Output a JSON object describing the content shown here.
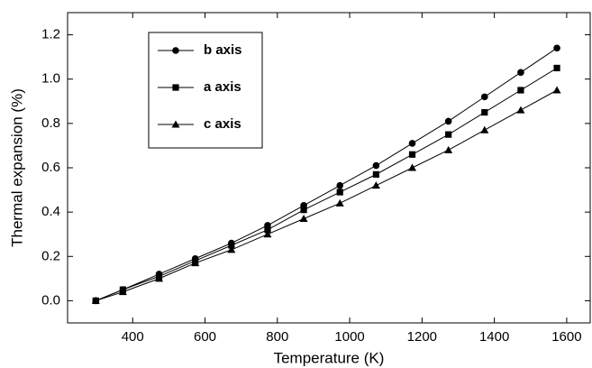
{
  "chart_data": {
    "type": "line",
    "x_label": "Temperature (K)",
    "y_label": "Thermal expansion (%)",
    "x": [
      298,
      373,
      473,
      573,
      673,
      773,
      873,
      973,
      1073,
      1173,
      1273,
      1373,
      1473,
      1573
    ],
    "series": [
      {
        "name": "b axis",
        "color": "#000000",
        "marker": "circle",
        "values": [
          0,
          0.05,
          0.12,
          0.19,
          0.26,
          0.34,
          0.43,
          0.52,
          0.61,
          0.71,
          0.81,
          0.92,
          1.03,
          1.14
        ]
      },
      {
        "name": "a axis",
        "color": "#000000",
        "marker": "square",
        "values": [
          0,
          0.05,
          0.11,
          0.18,
          0.25,
          0.32,
          0.41,
          0.49,
          0.57,
          0.66,
          0.75,
          0.85,
          0.95,
          1.05
        ]
      },
      {
        "name": "c axis",
        "color": "#000000",
        "marker": "triangle",
        "values": [
          0,
          0.04,
          0.1,
          0.17,
          0.23,
          0.3,
          0.37,
          0.44,
          0.52,
          0.6,
          0.68,
          0.77,
          0.86,
          0.95
        ]
      }
    ],
    "xlim": [
      220,
      1665
    ],
    "ylim": [
      -0.1,
      1.3
    ],
    "xticks": [
      400,
      600,
      800,
      1000,
      1200,
      1400,
      1600
    ],
    "yticks": [
      {
        "value": 0,
        "label": "0.0"
      },
      {
        "value": 0.2,
        "label": "0.2"
      },
      {
        "value": 0.4,
        "label": "0.4"
      },
      {
        "value": 0.6,
        "label": "0.6"
      },
      {
        "value": 0.8,
        "label": "0.8"
      },
      {
        "value": 1.0,
        "label": "1.0"
      },
      {
        "value": 1.2,
        "label": "1.2"
      }
    ],
    "legend": "upper left"
  }
}
